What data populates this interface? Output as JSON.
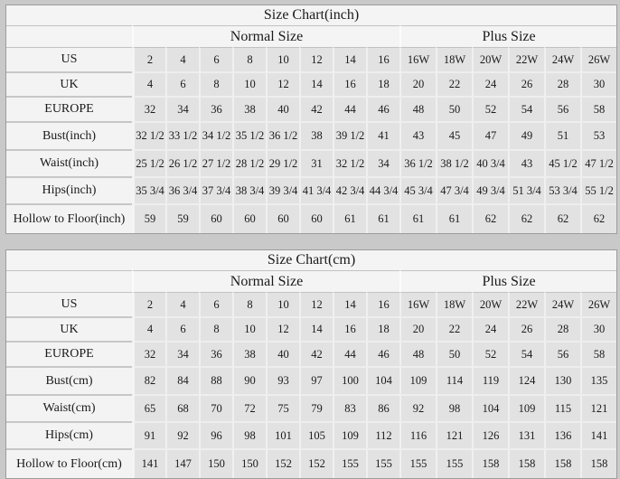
{
  "colors": {
    "page_background": "#c9c9c9",
    "table_background": "#f4f4f4",
    "label_cell_background": "#f3f3f3",
    "data_cell_background": "#e2e2e2",
    "text": "#1a1a1a"
  },
  "tables": [
    {
      "title": "Size Chart(inch)",
      "group_headers": {
        "normal": "Normal Size",
        "plus": "Plus Size"
      },
      "rows": [
        {
          "label": "US",
          "values": [
            "2",
            "4",
            "6",
            "8",
            "10",
            "12",
            "14",
            "16",
            "16W",
            "18W",
            "20W",
            "22W",
            "24W",
            "26W"
          ]
        },
        {
          "label": "UK",
          "values": [
            "4",
            "6",
            "8",
            "10",
            "12",
            "14",
            "16",
            "18",
            "20",
            "22",
            "24",
            "26",
            "28",
            "30"
          ]
        },
        {
          "label": "EUROPE",
          "values": [
            "32",
            "34",
            "36",
            "38",
            "40",
            "42",
            "44",
            "46",
            "48",
            "50",
            "52",
            "54",
            "56",
            "58"
          ]
        },
        {
          "label": "Bust(inch)",
          "values": [
            "32 1/2",
            "33 1/2",
            "34 1/2",
            "35 1/2",
            "36 1/2",
            "38",
            "39 1/2",
            "41",
            "43",
            "45",
            "47",
            "49",
            "51",
            "53"
          ]
        },
        {
          "label": "Waist(inch)",
          "values": [
            "25 1/2",
            "26 1/2",
            "27 1/2",
            "28 1/2",
            "29 1/2",
            "31",
            "32 1/2",
            "34",
            "36 1/2",
            "38 1/2",
            "40 3/4",
            "43",
            "45 1/2",
            "47 1/2"
          ]
        },
        {
          "label": "Hips(inch)",
          "values": [
            "35 3/4",
            "36 3/4",
            "37 3/4",
            "38 3/4",
            "39 3/4",
            "41 3/4",
            "42 3/4",
            "44 3/4",
            "45 3/4",
            "47 3/4",
            "49 3/4",
            "51 3/4",
            "53 3/4",
            "55 1/2"
          ]
        },
        {
          "label": "Hollow to Floor(inch)",
          "values": [
            "59",
            "59",
            "60",
            "60",
            "60",
            "60",
            "61",
            "61",
            "61",
            "61",
            "62",
            "62",
            "62",
            "62"
          ]
        }
      ]
    },
    {
      "title": "Size Chart(cm)",
      "group_headers": {
        "normal": "Normal Size",
        "plus": "Plus Size"
      },
      "rows": [
        {
          "label": "US",
          "values": [
            "2",
            "4",
            "6",
            "8",
            "10",
            "12",
            "14",
            "16",
            "16W",
            "18W",
            "20W",
            "22W",
            "24W",
            "26W"
          ]
        },
        {
          "label": "UK",
          "values": [
            "4",
            "6",
            "8",
            "10",
            "12",
            "14",
            "16",
            "18",
            "20",
            "22",
            "24",
            "26",
            "28",
            "30"
          ]
        },
        {
          "label": "EUROPE",
          "values": [
            "32",
            "34",
            "36",
            "38",
            "40",
            "42",
            "44",
            "46",
            "48",
            "50",
            "52",
            "54",
            "56",
            "58"
          ]
        },
        {
          "label": "Bust(cm)",
          "values": [
            "82",
            "84",
            "88",
            "90",
            "93",
            "97",
            "100",
            "104",
            "109",
            "114",
            "119",
            "124",
            "130",
            "135"
          ]
        },
        {
          "label": "Waist(cm)",
          "values": [
            "65",
            "68",
            "70",
            "72",
            "75",
            "79",
            "83",
            "86",
            "92",
            "98",
            "104",
            "109",
            "115",
            "121"
          ]
        },
        {
          "label": "Hips(cm)",
          "values": [
            "91",
            "92",
            "96",
            "98",
            "101",
            "105",
            "109",
            "112",
            "116",
            "121",
            "126",
            "131",
            "136",
            "141"
          ]
        },
        {
          "label": "Hollow to Floor(cm)",
          "values": [
            "141",
            "147",
            "150",
            "150",
            "152",
            "152",
            "155",
            "155",
            "155",
            "155",
            "158",
            "158",
            "158",
            "158"
          ]
        }
      ]
    }
  ]
}
